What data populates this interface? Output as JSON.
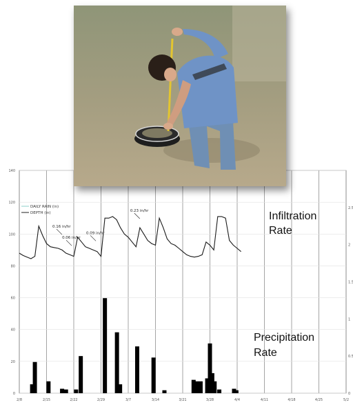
{
  "chart_data": {
    "type": "bar",
    "x_ticks": [
      "2/8",
      "2/15",
      "2/22",
      "2/29",
      "3/7",
      "3/14",
      "3/21",
      "3/28",
      "4/4",
      "4/11",
      "4/18",
      "4/25",
      "5/2"
    ],
    "y_left_ticks": [
      "0",
      "20",
      "40",
      "60",
      "80",
      "100",
      "120",
      "140"
    ],
    "y_right_ticks": [
      "0",
      "0.5",
      "1",
      "1.5",
      "2",
      "2.5"
    ],
    "ylim_left": [
      0,
      140
    ],
    "ylim_right": [
      0,
      3
    ],
    "xlim_days": [
      0,
      84
    ],
    "legend": [
      {
        "label": "DAILY RAIN (in)",
        "color": "#8ecfc9"
      },
      {
        "label": "DEPTH (in)",
        "color": "#222222"
      }
    ],
    "series": [
      {
        "name": "DAILY RAIN (in)",
        "kind": "bar",
        "axis": "right",
        "points": [
          [
            3.3,
            0.12
          ],
          [
            4,
            0.42
          ],
          [
            7.5,
            0.16
          ],
          [
            11,
            0.06
          ],
          [
            12,
            0.05
          ],
          [
            14.6,
            0.05
          ],
          [
            15.8,
            0.5
          ],
          [
            22,
            1.28
          ],
          [
            25.1,
            0.82
          ],
          [
            25.9,
            0.12
          ],
          [
            30.3,
            0.63
          ],
          [
            34.5,
            0.48
          ],
          [
            37.3,
            0.04
          ],
          [
            44.8,
            0.18
          ],
          [
            45.6,
            0.16
          ],
          [
            46.6,
            0.16
          ],
          [
            48.3,
            0.2
          ],
          [
            49,
            0.67
          ],
          [
            49.6,
            0.27
          ],
          [
            50.2,
            0.16
          ],
          [
            51.4,
            0.05
          ],
          [
            55.2,
            0.06
          ],
          [
            55.8,
            0.04
          ]
        ]
      },
      {
        "name": "DEPTH (in)",
        "kind": "line",
        "axis": "left",
        "points": [
          [
            0,
            88
          ],
          [
            1,
            86.5
          ],
          [
            2,
            85.5
          ],
          [
            3,
            84.5
          ],
          [
            4,
            86
          ],
          [
            5,
            105
          ],
          [
            6,
            99
          ],
          [
            7,
            94
          ],
          [
            8,
            92
          ],
          [
            9,
            91.5
          ],
          [
            10,
            91
          ],
          [
            11,
            90
          ],
          [
            12,
            88
          ],
          [
            13,
            87
          ],
          [
            14,
            86
          ],
          [
            15,
            98
          ],
          [
            16,
            95
          ],
          [
            17,
            92
          ],
          [
            18,
            91
          ],
          [
            19,
            90
          ],
          [
            20,
            89
          ],
          [
            21,
            86
          ],
          [
            22,
            110
          ],
          [
            23,
            110
          ],
          [
            24,
            111
          ],
          [
            25,
            109
          ],
          [
            26,
            104
          ],
          [
            27,
            100
          ],
          [
            28,
            98
          ],
          [
            29,
            95
          ],
          [
            30,
            92
          ],
          [
            31,
            104
          ],
          [
            32,
            100
          ],
          [
            33,
            96
          ],
          [
            34,
            94
          ],
          [
            35,
            93
          ],
          [
            36,
            110
          ],
          [
            37,
            104
          ],
          [
            38,
            97
          ],
          [
            39,
            94
          ],
          [
            40,
            93
          ],
          [
            41,
            91
          ],
          [
            42,
            89
          ],
          [
            43,
            87
          ],
          [
            44,
            86
          ],
          [
            45,
            85.5
          ],
          [
            46,
            86
          ],
          [
            47,
            87
          ],
          [
            48,
            95
          ],
          [
            49,
            93
          ],
          [
            50,
            90
          ],
          [
            51,
            111
          ],
          [
            52,
            111
          ],
          [
            53,
            110
          ],
          [
            54,
            96
          ],
          [
            55,
            93
          ],
          [
            56,
            91
          ],
          [
            57,
            89
          ]
        ]
      }
    ],
    "annotations": [
      {
        "text": "0.16 in/hr",
        "x": 8.5,
        "y": 104
      },
      {
        "text": "0.06 in/hr",
        "x": 11,
        "y": 97
      },
      {
        "text": "0.09 in/hr",
        "x": 17.2,
        "y": 100
      },
      {
        "text": "0.23 in/hr",
        "x": 28.5,
        "y": 114
      }
    ],
    "right_labels": [
      "Infiltration Rate",
      "Precipitation Rate"
    ],
    "grid": "vertical-and-horizontal",
    "legend_position": "top-left"
  },
  "labels": {
    "infiltration_line1": "Infiltration",
    "infiltration_line2": "Rate",
    "precip_line1": "Precipitation",
    "precip_line2": "Rate"
  }
}
